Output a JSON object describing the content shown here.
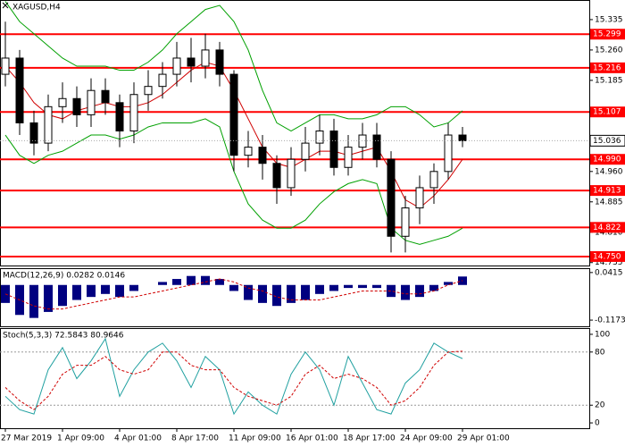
{
  "chart_data": [
    {
      "type": "candlestick",
      "title": "XAGUSD,H4",
      "categories": [
        "27 Mar 2019",
        null,
        null,
        null,
        "1 Apr 09:00",
        null,
        null,
        null,
        "4 Apr 01:00",
        null,
        null,
        null,
        "8 Apr 17:00",
        null,
        null,
        null,
        "11 Apr 09:00",
        null,
        null,
        null,
        "16 Apr 01:00",
        null,
        null,
        null,
        "18 Apr 17:00",
        null,
        null,
        null,
        "24 Apr 09:00",
        null,
        null,
        null,
        "29 Apr 01:00"
      ],
      "open": [
        15.2,
        15.24,
        15.08,
        15.03,
        15.12,
        15.14,
        15.1,
        15.16,
        15.13,
        15.06,
        15.15,
        15.17,
        15.2,
        15.24,
        15.22,
        15.26,
        15.2,
        15.0,
        15.02,
        14.98,
        14.92,
        14.99,
        15.03,
        15.06,
        14.97,
        15.02,
        15.05,
        14.99,
        14.8,
        14.87,
        14.92,
        14.96,
        15.05
      ],
      "high": [
        15.33,
        15.26,
        15.11,
        15.15,
        15.18,
        15.17,
        15.19,
        15.19,
        15.15,
        15.18,
        15.21,
        15.23,
        15.28,
        15.29,
        15.3,
        15.28,
        15.21,
        15.06,
        15.05,
        15.0,
        15.02,
        15.07,
        15.1,
        15.09,
        15.05,
        15.08,
        15.08,
        15.01,
        14.9,
        14.95,
        14.98,
        15.08,
        15.07
      ],
      "low": [
        15.17,
        15.05,
        15.0,
        15.01,
        15.08,
        15.07,
        15.07,
        15.1,
        15.02,
        15.03,
        15.11,
        15.14,
        15.17,
        15.18,
        15.19,
        15.17,
        14.96,
        14.97,
        14.94,
        14.88,
        14.9,
        14.96,
        15.0,
        14.95,
        14.95,
        14.99,
        14.97,
        14.76,
        14.76,
        14.83,
        14.88,
        14.94,
        15.02
      ],
      "close": [
        15.24,
        15.08,
        15.03,
        15.12,
        15.14,
        15.1,
        15.16,
        15.13,
        15.06,
        15.15,
        15.17,
        15.2,
        15.24,
        15.22,
        15.26,
        15.2,
        15.0,
        15.02,
        14.98,
        14.92,
        14.99,
        15.03,
        15.06,
        14.97,
        15.02,
        15.05,
        14.99,
        14.8,
        14.87,
        14.92,
        14.96,
        15.05,
        15.036
      ],
      "series": [
        {
          "color": "#00a000",
          "values": [
            15.38,
            15.33,
            15.3,
            15.27,
            15.24,
            15.22,
            15.22,
            15.22,
            15.21,
            15.21,
            15.23,
            15.26,
            15.3,
            15.33,
            15.36,
            15.37,
            15.33,
            15.26,
            15.16,
            15.08,
            15.06,
            15.08,
            15.1,
            15.1,
            15.09,
            15.09,
            15.1,
            15.12,
            15.12,
            15.1,
            15.07,
            15.08,
            15.11
          ]
        },
        {
          "color": "#00a000",
          "values": [
            15.05,
            15.0,
            14.98,
            15.0,
            15.01,
            15.03,
            15.05,
            15.05,
            15.04,
            15.05,
            15.07,
            15.08,
            15.08,
            15.08,
            15.09,
            15.07,
            14.96,
            14.88,
            14.84,
            14.82,
            14.82,
            14.84,
            14.88,
            14.91,
            14.93,
            14.94,
            14.93,
            14.82,
            14.79,
            14.78,
            14.79,
            14.8,
            14.82
          ]
        },
        {
          "color": "#d00000",
          "values": [
            15.22,
            15.18,
            15.13,
            15.1,
            15.09,
            15.11,
            15.12,
            15.13,
            15.12,
            15.12,
            15.13,
            15.15,
            15.18,
            15.21,
            15.23,
            15.22,
            15.16,
            15.09,
            15.02,
            14.98,
            14.97,
            14.99,
            15.01,
            15.01,
            15.0,
            15.01,
            15.02,
            14.96,
            14.89,
            14.87,
            14.9,
            14.94,
            14.99
          ]
        }
      ],
      "levels": [
        15.299,
        15.216,
        15.107,
        {
          "value": 14.99,
          "label": "14.990"
        },
        14.913,
        14.822,
        {
          "value": 14.75,
          "label": "14.750"
        }
      ],
      "level_color": "#ff0000",
      "current_price": 15.036,
      "ylim": [
        14.73,
        15.379
      ],
      "yticks": [
        15.335,
        {
          "value": 15.26,
          "label": "15.260"
        },
        15.185,
        {
          "value": 14.96,
          "label": "14.960"
        },
        14.885,
        {
          "value": 14.81,
          "label": "14.810"
        },
        14.735
      ]
    },
    {
      "type": "bar",
      "title": "MACD(12,26,9) 0.0282 0.0146",
      "series": [
        {
          "type": "bar",
          "color": "#000080",
          "values": [
            -0.06,
            -0.1,
            -0.11,
            -0.09,
            -0.07,
            -0.05,
            -0.04,
            -0.03,
            -0.04,
            -0.02,
            0.0,
            0.01,
            0.02,
            0.03,
            0.03,
            0.02,
            -0.02,
            -0.05,
            -0.06,
            -0.07,
            -0.06,
            -0.05,
            -0.03,
            -0.02,
            -0.01,
            -0.01,
            -0.01,
            -0.04,
            -0.05,
            -0.04,
            -0.02,
            0.01,
            0.0282
          ]
        },
        {
          "type": "line",
          "dashed": true,
          "color": "#d00000",
          "values": [
            -0.03,
            -0.05,
            -0.07,
            -0.08,
            -0.08,
            -0.07,
            -0.06,
            -0.05,
            -0.04,
            -0.04,
            -0.03,
            -0.02,
            -0.01,
            0.0,
            0.01,
            0.02,
            0.01,
            -0.01,
            -0.02,
            -0.04,
            -0.05,
            -0.05,
            -0.05,
            -0.04,
            -0.03,
            -0.02,
            -0.02,
            -0.02,
            -0.03,
            -0.03,
            -0.02,
            0.0,
            0.0146
          ]
        }
      ],
      "ylim": [
        -0.135,
        0.05
      ],
      "yticks": [
        0.0415,
        -0.1173
      ]
    },
    {
      "type": "line",
      "title": "Stoch(5,3,3) 72.5843 80.9646",
      "series": [
        {
          "type": "line",
          "color": "#20a0a0",
          "values": [
            30,
            15,
            10,
            60,
            85,
            50,
            70,
            95,
            30,
            60,
            80,
            90,
            70,
            40,
            75,
            60,
            10,
            35,
            20,
            10,
            55,
            80,
            60,
            20,
            75,
            45,
            15,
            10,
            45,
            60,
            90,
            80,
            72.5843
          ]
        },
        {
          "type": "line",
          "dashed": true,
          "color": "#d00000",
          "values": [
            40,
            25,
            15,
            30,
            55,
            65,
            65,
            75,
            60,
            55,
            60,
            80,
            80,
            65,
            60,
            60,
            40,
            30,
            25,
            20,
            30,
            55,
            65,
            50,
            55,
            50,
            40,
            20,
            25,
            40,
            65,
            80,
            80.9646
          ]
        }
      ],
      "levels": [
        80,
        20
      ],
      "level_color": "#999999",
      "ylim": [
        -5,
        105
      ],
      "yticks": [
        100,
        80,
        20,
        0
      ]
    }
  ]
}
